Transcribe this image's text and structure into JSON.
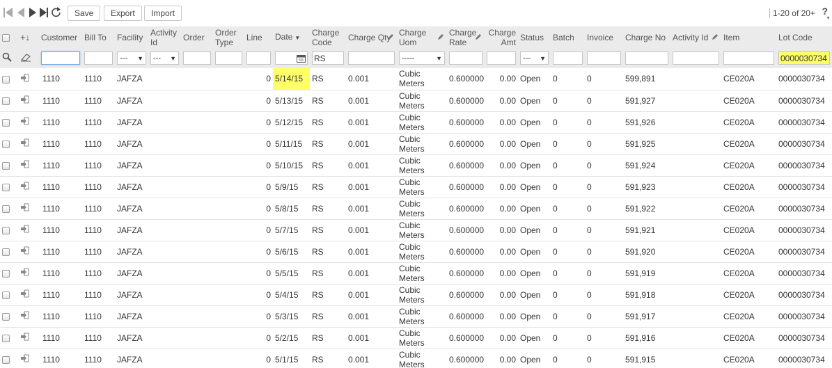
{
  "toolbar": {
    "save_label": "Save",
    "export_label": "Export",
    "import_label": "Import",
    "page_info": "1-20 of 20+",
    "help": "?"
  },
  "columns": {
    "customer": "Customer",
    "bill_to": "Bill To",
    "facility": "Facility",
    "activity_id": "Activity Id",
    "order": "Order",
    "order_type": "Order Type",
    "line": "Line",
    "date": "Date",
    "charge_code": "Charge Code",
    "charge_qty": "Charge Qty",
    "charge_uom": "Charge Uom",
    "charge_rate": "Charge Rate",
    "charge_amt": "Charge Amt",
    "status": "Status",
    "batch": "Batch",
    "invoice": "Invoice",
    "charge_no": "Charge No",
    "activity_id_2": "Activity Id",
    "item": "Item",
    "lot_code": "Lot Code"
  },
  "filters": {
    "facility": "---",
    "activity_id": "---",
    "charge_code": "RS",
    "charge_uom": "-----",
    "status": "---",
    "lot_code": "0000030734"
  },
  "rows": [
    {
      "customer": "1110",
      "bill_to": "1110",
      "facility": "JAFZA",
      "line": "0",
      "date": "5/14/15",
      "charge_code": "RS",
      "charge_qty": "0.001",
      "uom1": "Cubic",
      "uom2": "Meters",
      "charge_rate": "0.600000",
      "charge_amt": "0.00",
      "status": "Open",
      "batch": "0",
      "invoice": "0",
      "charge_no": "599,891",
      "item": "CE020A",
      "lot_code": "0000030734"
    },
    {
      "customer": "1110",
      "bill_to": "1110",
      "facility": "JAFZA",
      "line": "0",
      "date": "5/13/15",
      "charge_code": "RS",
      "charge_qty": "0.001",
      "uom1": "Cubic",
      "uom2": "Meters",
      "charge_rate": "0.600000",
      "charge_amt": "0.00",
      "status": "Open",
      "batch": "0",
      "invoice": "0",
      "charge_no": "591,927",
      "item": "CE020A",
      "lot_code": "0000030734"
    },
    {
      "customer": "1110",
      "bill_to": "1110",
      "facility": "JAFZA",
      "line": "0",
      "date": "5/12/15",
      "charge_code": "RS",
      "charge_qty": "0.001",
      "uom1": "Cubic",
      "uom2": "Meters",
      "charge_rate": "0.600000",
      "charge_amt": "0.00",
      "status": "Open",
      "batch": "0",
      "invoice": "0",
      "charge_no": "591,926",
      "item": "CE020A",
      "lot_code": "0000030734"
    },
    {
      "customer": "1110",
      "bill_to": "1110",
      "facility": "JAFZA",
      "line": "0",
      "date": "5/11/15",
      "charge_code": "RS",
      "charge_qty": "0.001",
      "uom1": "Cubic",
      "uom2": "Meters",
      "charge_rate": "0.600000",
      "charge_amt": "0.00",
      "status": "Open",
      "batch": "0",
      "invoice": "0",
      "charge_no": "591,925",
      "item": "CE020A",
      "lot_code": "0000030734"
    },
    {
      "customer": "1110",
      "bill_to": "1110",
      "facility": "JAFZA",
      "line": "0",
      "date": "5/10/15",
      "charge_code": "RS",
      "charge_qty": "0.001",
      "uom1": "Cubic",
      "uom2": "Meters",
      "charge_rate": "0.600000",
      "charge_amt": "0.00",
      "status": "Open",
      "batch": "0",
      "invoice": "0",
      "charge_no": "591,924",
      "item": "CE020A",
      "lot_code": "0000030734"
    },
    {
      "customer": "1110",
      "bill_to": "1110",
      "facility": "JAFZA",
      "line": "0",
      "date": "5/9/15",
      "charge_code": "RS",
      "charge_qty": "0.001",
      "uom1": "Cubic",
      "uom2": "Meters",
      "charge_rate": "0.600000",
      "charge_amt": "0.00",
      "status": "Open",
      "batch": "0",
      "invoice": "0",
      "charge_no": "591,923",
      "item": "CE020A",
      "lot_code": "0000030734"
    },
    {
      "customer": "1110",
      "bill_to": "1110",
      "facility": "JAFZA",
      "line": "0",
      "date": "5/8/15",
      "charge_code": "RS",
      "charge_qty": "0.001",
      "uom1": "Cubic",
      "uom2": "Meters",
      "charge_rate": "0.600000",
      "charge_amt": "0.00",
      "status": "Open",
      "batch": "0",
      "invoice": "0",
      "charge_no": "591,922",
      "item": "CE020A",
      "lot_code": "0000030734"
    },
    {
      "customer": "1110",
      "bill_to": "1110",
      "facility": "JAFZA",
      "line": "0",
      "date": "5/7/15",
      "charge_code": "RS",
      "charge_qty": "0.001",
      "uom1": "Cubic",
      "uom2": "Meters",
      "charge_rate": "0.600000",
      "charge_amt": "0.00",
      "status": "Open",
      "batch": "0",
      "invoice": "0",
      "charge_no": "591,921",
      "item": "CE020A",
      "lot_code": "0000030734"
    },
    {
      "customer": "1110",
      "bill_to": "1110",
      "facility": "JAFZA",
      "line": "0",
      "date": "5/6/15",
      "charge_code": "RS",
      "charge_qty": "0.001",
      "uom1": "Cubic",
      "uom2": "Meters",
      "charge_rate": "0.600000",
      "charge_amt": "0.00",
      "status": "Open",
      "batch": "0",
      "invoice": "0",
      "charge_no": "591,920",
      "item": "CE020A",
      "lot_code": "0000030734"
    },
    {
      "customer": "1110",
      "bill_to": "1110",
      "facility": "JAFZA",
      "line": "0",
      "date": "5/5/15",
      "charge_code": "RS",
      "charge_qty": "0.001",
      "uom1": "Cubic",
      "uom2": "Meters",
      "charge_rate": "0.600000",
      "charge_amt": "0.00",
      "status": "Open",
      "batch": "0",
      "invoice": "0",
      "charge_no": "591,919",
      "item": "CE020A",
      "lot_code": "0000030734"
    },
    {
      "customer": "1110",
      "bill_to": "1110",
      "facility": "JAFZA",
      "line": "0",
      "date": "5/4/15",
      "charge_code": "RS",
      "charge_qty": "0.001",
      "uom1": "Cubic",
      "uom2": "Meters",
      "charge_rate": "0.600000",
      "charge_amt": "0.00",
      "status": "Open",
      "batch": "0",
      "invoice": "0",
      "charge_no": "591,918",
      "item": "CE020A",
      "lot_code": "0000030734"
    },
    {
      "customer": "1110",
      "bill_to": "1110",
      "facility": "JAFZA",
      "line": "0",
      "date": "5/3/15",
      "charge_code": "RS",
      "charge_qty": "0.001",
      "uom1": "Cubic",
      "uom2": "Meters",
      "charge_rate": "0.600000",
      "charge_amt": "0.00",
      "status": "Open",
      "batch": "0",
      "invoice": "0",
      "charge_no": "591,917",
      "item": "CE020A",
      "lot_code": "0000030734"
    },
    {
      "customer": "1110",
      "bill_to": "1110",
      "facility": "JAFZA",
      "line": "0",
      "date": "5/2/15",
      "charge_code": "RS",
      "charge_qty": "0.001",
      "uom1": "Cubic",
      "uom2": "Meters",
      "charge_rate": "0.600000",
      "charge_amt": "0.00",
      "status": "Open",
      "batch": "0",
      "invoice": "0",
      "charge_no": "591,916",
      "item": "CE020A",
      "lot_code": "0000030734"
    },
    {
      "customer": "1110",
      "bill_to": "1110",
      "facility": "JAFZA",
      "line": "0",
      "date": "5/1/15",
      "charge_code": "RS",
      "charge_qty": "0.001",
      "uom1": "Cubic",
      "uom2": "Meters",
      "charge_rate": "0.600000",
      "charge_amt": "0.00",
      "status": "Open",
      "batch": "0",
      "invoice": "0",
      "charge_no": "591,915",
      "item": "CE020A",
      "lot_code": "0000030734"
    }
  ],
  "icons": {
    "first": "first-page-icon",
    "prev": "prev-page-icon",
    "next": "next-page-icon",
    "last": "last-page-icon",
    "refresh": "refresh-icon",
    "add": "add-sort-icon",
    "search": "search-icon",
    "eraser": "eraser-icon",
    "row_open": "row-open-icon",
    "pencil": "pencil-icon",
    "calendar": "calendar-icon"
  },
  "colors": {
    "highlight": "#ffff66",
    "header_bg": "#ebebeb",
    "active_border": "#6aa6e0"
  }
}
